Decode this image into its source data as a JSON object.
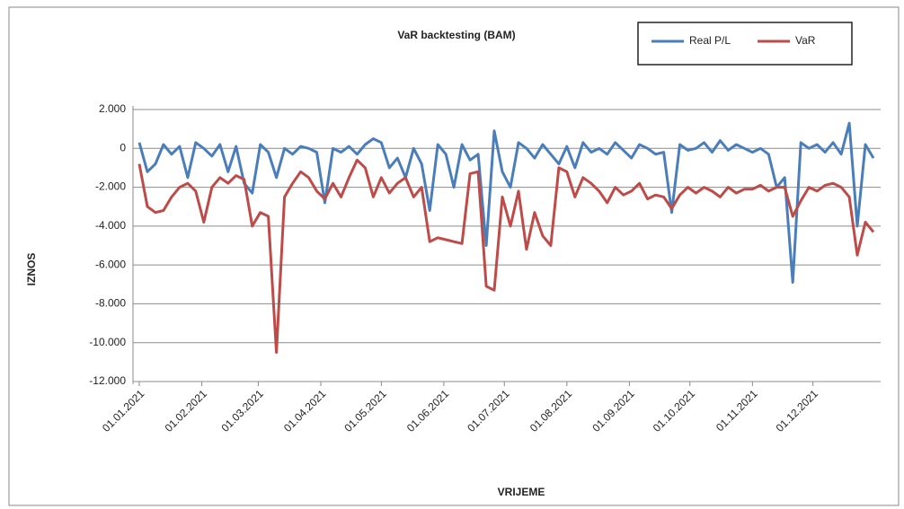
{
  "chart_data": {
    "type": "line",
    "title": "VaR backtesting (BAM)",
    "x_label": "VRIJEME",
    "y_label": "IZNOS",
    "legend": "top-right",
    "grid": true,
    "x": [
      "01.01.2021",
      "05.01.2021",
      "09.01.2021",
      "13.01.2021",
      "17.01.2021",
      "21.01.2021",
      "25.01.2021",
      "29.01.2021",
      "02.02.2021",
      "06.02.2021",
      "10.02.2021",
      "14.02.2021",
      "18.02.2021",
      "22.02.2021",
      "26.02.2021",
      "02.03.2021",
      "06.03.2021",
      "10.03.2021",
      "14.03.2021",
      "18.03.2021",
      "22.03.2021",
      "26.03.2021",
      "30.03.2021",
      "03.04.2021",
      "07.04.2021",
      "11.04.2021",
      "15.04.2021",
      "19.04.2021",
      "23.04.2021",
      "27.04.2021",
      "01.05.2021",
      "05.05.2021",
      "09.05.2021",
      "13.05.2021",
      "17.05.2021",
      "21.05.2021",
      "25.05.2021",
      "29.05.2021",
      "02.06.2021",
      "06.06.2021",
      "10.06.2021",
      "14.06.2021",
      "18.06.2021",
      "22.06.2021",
      "26.06.2021",
      "30.06.2021",
      "04.07.2021",
      "08.07.2021",
      "12.07.2021",
      "16.07.2021",
      "20.07.2021",
      "24.07.2021",
      "28.07.2021",
      "01.08.2021",
      "05.08.2021",
      "09.08.2021",
      "13.08.2021",
      "17.08.2021",
      "21.08.2021",
      "25.08.2021",
      "29.08.2021",
      "02.09.2021",
      "06.09.2021",
      "10.09.2021",
      "14.09.2021",
      "18.09.2021",
      "22.09.2021",
      "26.09.2021",
      "30.09.2021",
      "04.10.2021",
      "08.10.2021",
      "12.10.2021",
      "16.10.2021",
      "20.10.2021",
      "24.10.2021",
      "28.10.2021",
      "01.11.2021",
      "05.11.2021",
      "09.11.2021",
      "13.11.2021",
      "17.11.2021",
      "21.11.2021",
      "25.11.2021",
      "29.11.2021",
      "03.12.2021",
      "07.12.2021",
      "11.12.2021",
      "15.12.2021",
      "19.12.2021",
      "23.12.2021",
      "27.12.2021",
      "31.12.2021"
    ],
    "series": [
      {
        "name": "Real P/L",
        "color": "#4a7ebb",
        "values": [
          300,
          -1200,
          -800,
          200,
          -300,
          100,
          -1500,
          300,
          0,
          -400,
          200,
          -1200,
          100,
          -1800,
          -2300,
          200,
          -200,
          -1500,
          0,
          -300,
          100,
          0,
          -200,
          -2800,
          0,
          -200,
          100,
          -300,
          200,
          500,
          300,
          -1000,
          -500,
          -1500,
          0,
          -800,
          -3200,
          200,
          -300,
          -2000,
          200,
          -600,
          -300,
          -5000,
          900,
          -1200,
          -2000,
          300,
          0,
          -500,
          200,
          -300,
          -800,
          100,
          -1000,
          300,
          -200,
          0,
          -300,
          300,
          -100,
          -500,
          200,
          0,
          -300,
          -200,
          -3300,
          200,
          -100,
          0,
          300,
          -200,
          400,
          -100,
          200,
          0,
          -200,
          0,
          -300,
          -2000,
          -1500,
          -6900,
          300,
          0,
          200,
          -200,
          300,
          -300,
          1300,
          -4000,
          200,
          -500
        ]
      },
      {
        "name": "VaR",
        "color": "#be4b48",
        "values": [
          -800,
          -3000,
          -3300,
          -3200,
          -2500,
          -2000,
          -1800,
          -2200,
          -3800,
          -2000,
          -1500,
          -1800,
          -1400,
          -1600,
          -4000,
          -3300,
          -3500,
          -10500,
          -2500,
          -1800,
          -1200,
          -1500,
          -2200,
          -2600,
          -1800,
          -2500,
          -1500,
          -600,
          -1000,
          -2500,
          -1500,
          -2300,
          -1800,
          -1500,
          -2500,
          -2000,
          -4800,
          -4600,
          -4700,
          -4800,
          -4900,
          -1300,
          -1200,
          -7100,
          -7300,
          -2500,
          -4000,
          -2200,
          -5200,
          -3300,
          -4500,
          -5000,
          -1000,
          -1200,
          -2500,
          -1500,
          -1800,
          -2200,
          -2800,
          -2000,
          -2400,
          -2200,
          -1800,
          -2600,
          -2400,
          -2500,
          -3100,
          -2400,
          -2000,
          -2300,
          -2000,
          -2200,
          -2500,
          -2000,
          -2300,
          -2100,
          -2100,
          -1900,
          -2200,
          -2000,
          -2000,
          -3500,
          -2700,
          -2000,
          -2200,
          -1900,
          -1800,
          -2000,
          -2500,
          -5500,
          -3800,
          -4300
        ]
      }
    ],
    "xlim": [
      "01.01.2021",
      "31.12.2021"
    ],
    "xticks": [
      "01.01.2021",
      "01.02.2021",
      "01.03.2021",
      "01.04.2021",
      "01.05.2021",
      "01.06.2021",
      "01.07.2021",
      "01.08.2021",
      "01.09.2021",
      "01.10.2021",
      "01.11.2021",
      "01.12.2021"
    ],
    "ylim": [
      -12000,
      2000
    ],
    "yticks": [
      {
        "value": 2000,
        "label": "2.000"
      },
      0,
      {
        "value": -2000,
        "label": "-2.000"
      },
      {
        "value": -4000,
        "label": "-4.000"
      },
      {
        "value": -6000,
        "label": "-6.000"
      },
      {
        "value": -8000,
        "label": "-8.000"
      },
      {
        "value": -10000,
        "label": "-10.000"
      },
      {
        "value": -12000,
        "label": "-12.000"
      }
    ]
  }
}
